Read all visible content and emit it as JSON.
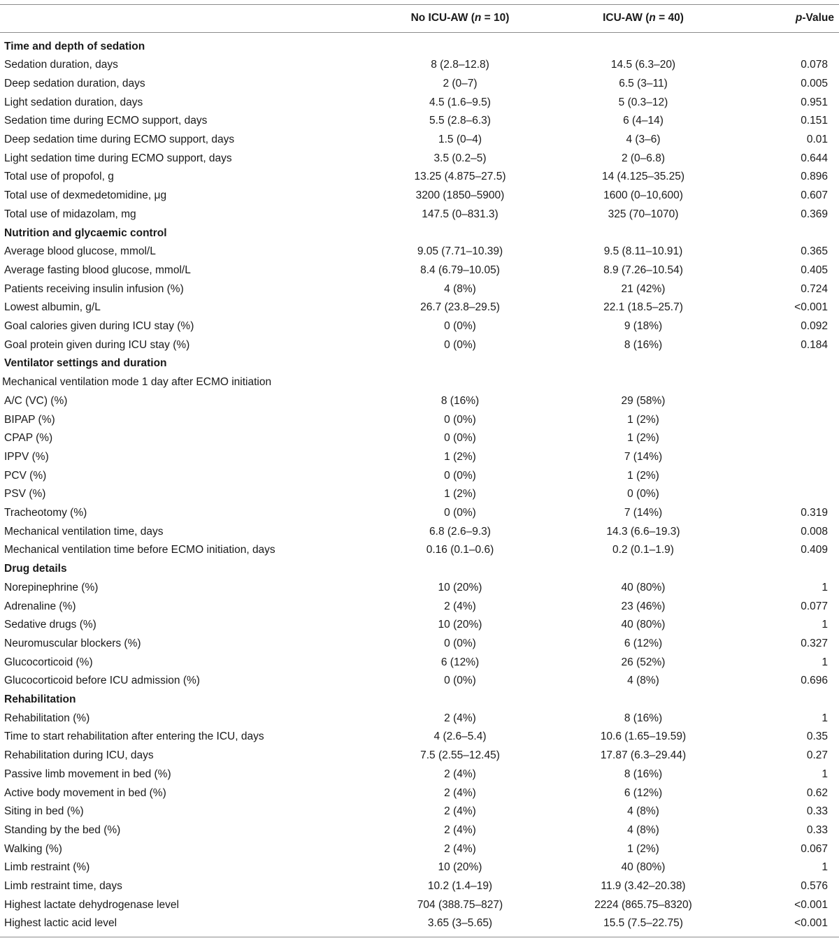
{
  "header": {
    "col1": {
      "pre": "No ICU-AW (",
      "var": "n",
      "post": " = 10)"
    },
    "col2": {
      "pre": "ICU-AW (",
      "var": "n",
      "post": " = 40)"
    },
    "col3": {
      "var": "p",
      "post": "-Value"
    }
  },
  "rows": [
    {
      "type": "section",
      "label": "Time and depth of sedation"
    },
    {
      "type": "data",
      "label": "Sedation duration, days",
      "no_icuaw": "8 (2.8–12.8)",
      "icuaw": "14.5 (6.3–20)",
      "p": "0.078"
    },
    {
      "type": "data",
      "label": "Deep sedation duration, days",
      "no_icuaw": "2 (0–7)",
      "icuaw": "6.5 (3–11)",
      "p": "0.005"
    },
    {
      "type": "data",
      "label": "Light sedation duration, days",
      "no_icuaw": "4.5 (1.6–9.5)",
      "icuaw": "5 (0.3–12)",
      "p": "0.951"
    },
    {
      "type": "data",
      "label": "Sedation time during ECMO support, days",
      "no_icuaw": "5.5 (2.8–6.3)",
      "icuaw": "6 (4–14)",
      "p": "0.151"
    },
    {
      "type": "data",
      "label": "Deep sedation time during ECMO support, days",
      "no_icuaw": "1.5 (0–4)",
      "icuaw": "4 (3–6)",
      "p": "0.01"
    },
    {
      "type": "data",
      "label": "Light sedation time during ECMO support, days",
      "no_icuaw": "3.5 (0.2–5)",
      "icuaw": "2 (0–6.8)",
      "p": "0.644"
    },
    {
      "type": "data",
      "label": "Total use of propofol, g",
      "no_icuaw": "13.25 (4.875–27.5)",
      "icuaw": "14 (4.125–35.25)",
      "p": "0.896"
    },
    {
      "type": "data",
      "label": "Total use of dexmedetomidine, μg",
      "no_icuaw": "3200 (1850–5900)",
      "icuaw": "1600 (0–10,600)",
      "p": "0.607"
    },
    {
      "type": "data",
      "label": "Total use of midazolam, mg",
      "no_icuaw": "147.5 (0–831.3)",
      "icuaw": "325 (70–1070)",
      "p": "0.369"
    },
    {
      "type": "section",
      "label": "Nutrition and glycaemic control"
    },
    {
      "type": "data",
      "label": "Average blood glucose, mmol/L",
      "no_icuaw": "9.05 (7.71–10.39)",
      "icuaw": "9.5 (8.11–10.91)",
      "p": "0.365"
    },
    {
      "type": "data",
      "label": "Average fasting blood glucose, mmol/L",
      "no_icuaw": "8.4 (6.79–10.05)",
      "icuaw": "8.9 (7.26–10.54)",
      "p": "0.405"
    },
    {
      "type": "data",
      "label": "Patients receiving insulin infusion (%)",
      "no_icuaw": "4 (8%)",
      "icuaw": "21 (42%)",
      "p": "0.724"
    },
    {
      "type": "data",
      "label": "Lowest albumin, g/L",
      "no_icuaw": "26.7 (23.8–29.5)",
      "icuaw": "22.1 (18.5–25.7)",
      "p": "<0.001"
    },
    {
      "type": "data",
      "label": "Goal calories given during ICU stay (%)",
      "no_icuaw": "0 (0%)",
      "icuaw": "9 (18%)",
      "p": "0.092"
    },
    {
      "type": "data",
      "label": "Goal protein given during ICU stay (%)",
      "no_icuaw": "0 (0%)",
      "icuaw": "8 (16%)",
      "p": "0.184"
    },
    {
      "type": "section",
      "label": "Ventilator settings and duration"
    },
    {
      "type": "subheader",
      "label": "Mechanical ventilation mode 1 day after ECMO initiation"
    },
    {
      "type": "data",
      "label": "A/C (VC) (%)",
      "no_icuaw": "8 (16%)",
      "icuaw": "29 (58%)",
      "p": ""
    },
    {
      "type": "data",
      "label": "BIPAP (%)",
      "no_icuaw": "0 (0%)",
      "icuaw": "1 (2%)",
      "p": ""
    },
    {
      "type": "data",
      "label": "CPAP (%)",
      "no_icuaw": "0 (0%)",
      "icuaw": "1 (2%)",
      "p": ""
    },
    {
      "type": "data",
      "label": "IPPV (%)",
      "no_icuaw": "1 (2%)",
      "icuaw": "7 (14%)",
      "p": ""
    },
    {
      "type": "data",
      "label": "PCV (%)",
      "no_icuaw": "0 (0%)",
      "icuaw": "1 (2%)",
      "p": ""
    },
    {
      "type": "data",
      "label": "PSV (%)",
      "no_icuaw": "1 (2%)",
      "icuaw": "0 (0%)",
      "p": ""
    },
    {
      "type": "data",
      "label": "Tracheotomy (%)",
      "no_icuaw": "0 (0%)",
      "icuaw": "7 (14%)",
      "p": "0.319"
    },
    {
      "type": "data",
      "label": "Mechanical ventilation time, days",
      "no_icuaw": "6.8 (2.6–9.3)",
      "icuaw": "14.3 (6.6–19.3)",
      "p": "0.008"
    },
    {
      "type": "data",
      "label": "Mechanical ventilation time before ECMO initiation, days",
      "no_icuaw": "0.16 (0.1–0.6)",
      "icuaw": "0.2 (0.1–1.9)",
      "p": "0.409"
    },
    {
      "type": "section",
      "label": "Drug details"
    },
    {
      "type": "data",
      "label": "Norepinephrine (%)",
      "no_icuaw": "10 (20%)",
      "icuaw": "40 (80%)",
      "p": "1"
    },
    {
      "type": "data",
      "label": "Adrenaline (%)",
      "no_icuaw": "2 (4%)",
      "icuaw": "23 (46%)",
      "p": "0.077"
    },
    {
      "type": "data",
      "label": "Sedative drugs (%)",
      "no_icuaw": "10 (20%)",
      "icuaw": "40 (80%)",
      "p": "1"
    },
    {
      "type": "data",
      "label": "Neuromuscular blockers (%)",
      "no_icuaw": "0 (0%)",
      "icuaw": "6 (12%)",
      "p": "0.327"
    },
    {
      "type": "data",
      "label": "Glucocorticoid (%)",
      "no_icuaw": "6 (12%)",
      "icuaw": "26 (52%)",
      "p": "1"
    },
    {
      "type": "data",
      "label": "Glucocorticoid before ICU admission (%)",
      "no_icuaw": "0 (0%)",
      "icuaw": "4 (8%)",
      "p": "0.696"
    },
    {
      "type": "section",
      "label": "Rehabilitation"
    },
    {
      "type": "data",
      "label": "Rehabilitation (%)",
      "no_icuaw": "2 (4%)",
      "icuaw": "8 (16%)",
      "p": "1"
    },
    {
      "type": "data",
      "label": "Time to start rehabilitation after entering the ICU, days",
      "no_icuaw": "4 (2.6–5.4)",
      "icuaw": "10.6 (1.65–19.59)",
      "p": "0.35"
    },
    {
      "type": "data",
      "label": "Rehabilitation during ICU, days",
      "no_icuaw": "7.5 (2.55–12.45)",
      "icuaw": "17.87 (6.3–29.44)",
      "p": "0.27"
    },
    {
      "type": "data",
      "label": "Passive limb movement in bed (%)",
      "no_icuaw": "2 (4%)",
      "icuaw": "8 (16%)",
      "p": "1"
    },
    {
      "type": "data",
      "label": "Active body movement in bed (%)",
      "no_icuaw": "2 (4%)",
      "icuaw": "6 (12%)",
      "p": "0.62"
    },
    {
      "type": "data",
      "label": "Siting in bed (%)",
      "no_icuaw": "2 (4%)",
      "icuaw": "4 (8%)",
      "p": "0.33"
    },
    {
      "type": "data",
      "label": "Standing by the bed (%)",
      "no_icuaw": "2 (4%)",
      "icuaw": "4 (8%)",
      "p": "0.33"
    },
    {
      "type": "data",
      "label": "Walking (%)",
      "no_icuaw": "2 (4%)",
      "icuaw": "1 (2%)",
      "p": "0.067"
    },
    {
      "type": "data",
      "label": "Limb restraint (%)",
      "no_icuaw": "10 (20%)",
      "icuaw": "40 (80%)",
      "p": "1"
    },
    {
      "type": "data",
      "label": "Limb restraint time, days",
      "no_icuaw": "10.2 (1.4–19)",
      "icuaw": "11.9 (3.42–20.38)",
      "p": "0.576"
    },
    {
      "type": "data",
      "label": "Highest lactate dehydrogenase level",
      "no_icuaw": "704 (388.75–827)",
      "icuaw": "2224 (865.75–8320)",
      "p": "<0.001"
    },
    {
      "type": "data",
      "label": "Highest lactic acid level",
      "no_icuaw": "3.65 (3–5.65)",
      "icuaw": "15.5 (7.5–22.75)",
      "p": "<0.001"
    }
  ]
}
